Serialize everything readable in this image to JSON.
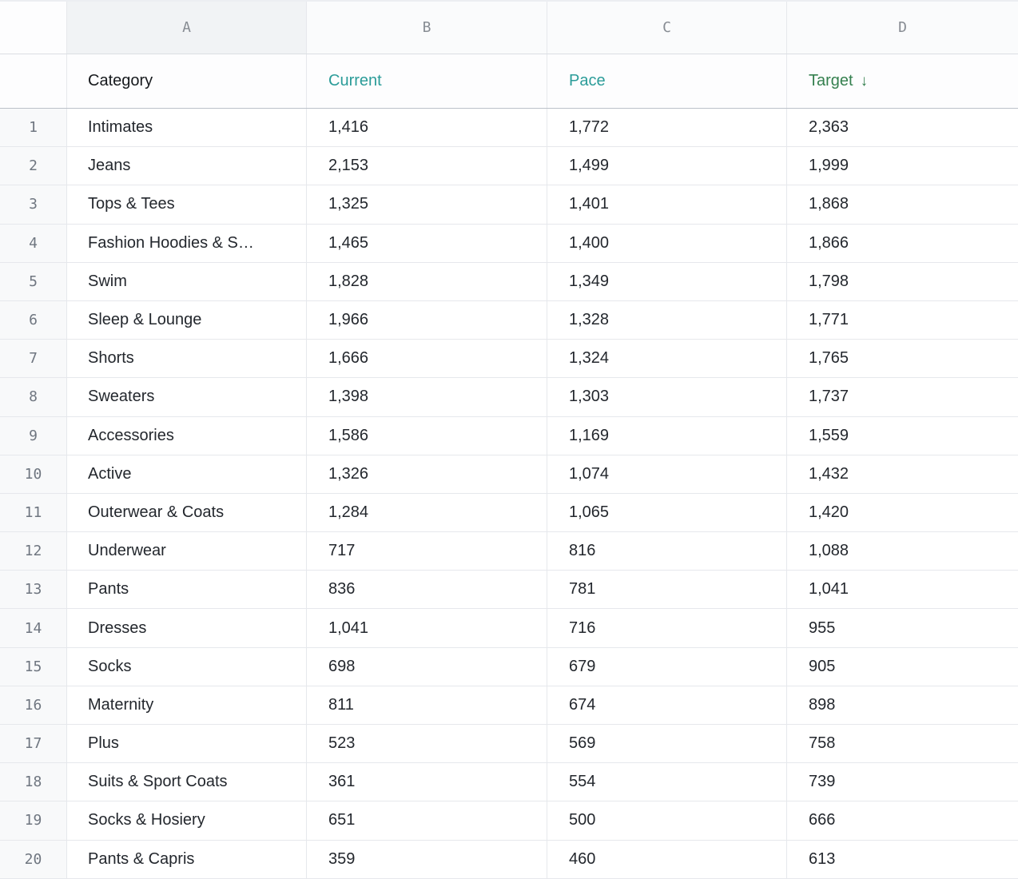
{
  "colors": {
    "accent_teal": "#2b9c99",
    "accent_green": "#35804f"
  },
  "spreadsheet": {
    "column_letters": [
      "A",
      "B",
      "C",
      "D"
    ],
    "headers": {
      "category": "Category",
      "current": "Current",
      "pace": "Pace",
      "target": "Target",
      "sort_icon": "↓"
    },
    "rows": [
      {
        "num": "1",
        "category": "Intimates",
        "current": "1,416",
        "pace": "1,772",
        "target": "2,363"
      },
      {
        "num": "2",
        "category": "Jeans",
        "current": "2,153",
        "pace": "1,499",
        "target": "1,999"
      },
      {
        "num": "3",
        "category": "Tops & Tees",
        "current": "1,325",
        "pace": "1,401",
        "target": "1,868"
      },
      {
        "num": "4",
        "category": "Fashion Hoodies & S…",
        "current": "1,465",
        "pace": "1,400",
        "target": "1,866"
      },
      {
        "num": "5",
        "category": "Swim",
        "current": "1,828",
        "pace": "1,349",
        "target": "1,798"
      },
      {
        "num": "6",
        "category": "Sleep & Lounge",
        "current": "1,966",
        "pace": "1,328",
        "target": "1,771"
      },
      {
        "num": "7",
        "category": "Shorts",
        "current": "1,666",
        "pace": "1,324",
        "target": "1,765"
      },
      {
        "num": "8",
        "category": "Sweaters",
        "current": "1,398",
        "pace": "1,303",
        "target": "1,737"
      },
      {
        "num": "9",
        "category": "Accessories",
        "current": "1,586",
        "pace": "1,169",
        "target": "1,559"
      },
      {
        "num": "10",
        "category": "Active",
        "current": "1,326",
        "pace": "1,074",
        "target": "1,432"
      },
      {
        "num": "11",
        "category": "Outerwear & Coats",
        "current": "1,284",
        "pace": "1,065",
        "target": "1,420"
      },
      {
        "num": "12",
        "category": "Underwear",
        "current": "717",
        "pace": "816",
        "target": "1,088"
      },
      {
        "num": "13",
        "category": "Pants",
        "current": "836",
        "pace": "781",
        "target": "1,041"
      },
      {
        "num": "14",
        "category": "Dresses",
        "current": "1,041",
        "pace": "716",
        "target": "955"
      },
      {
        "num": "15",
        "category": "Socks",
        "current": "698",
        "pace": "679",
        "target": "905"
      },
      {
        "num": "16",
        "category": "Maternity",
        "current": "811",
        "pace": "674",
        "target": "898"
      },
      {
        "num": "17",
        "category": "Plus",
        "current": "523",
        "pace": "569",
        "target": "758"
      },
      {
        "num": "18",
        "category": "Suits & Sport Coats",
        "current": "361",
        "pace": "554",
        "target": "739"
      },
      {
        "num": "19",
        "category": "Socks & Hosiery",
        "current": "651",
        "pace": "500",
        "target": "666"
      },
      {
        "num": "20",
        "category": "Pants & Capris",
        "current": "359",
        "pace": "460",
        "target": "613"
      }
    ]
  }
}
